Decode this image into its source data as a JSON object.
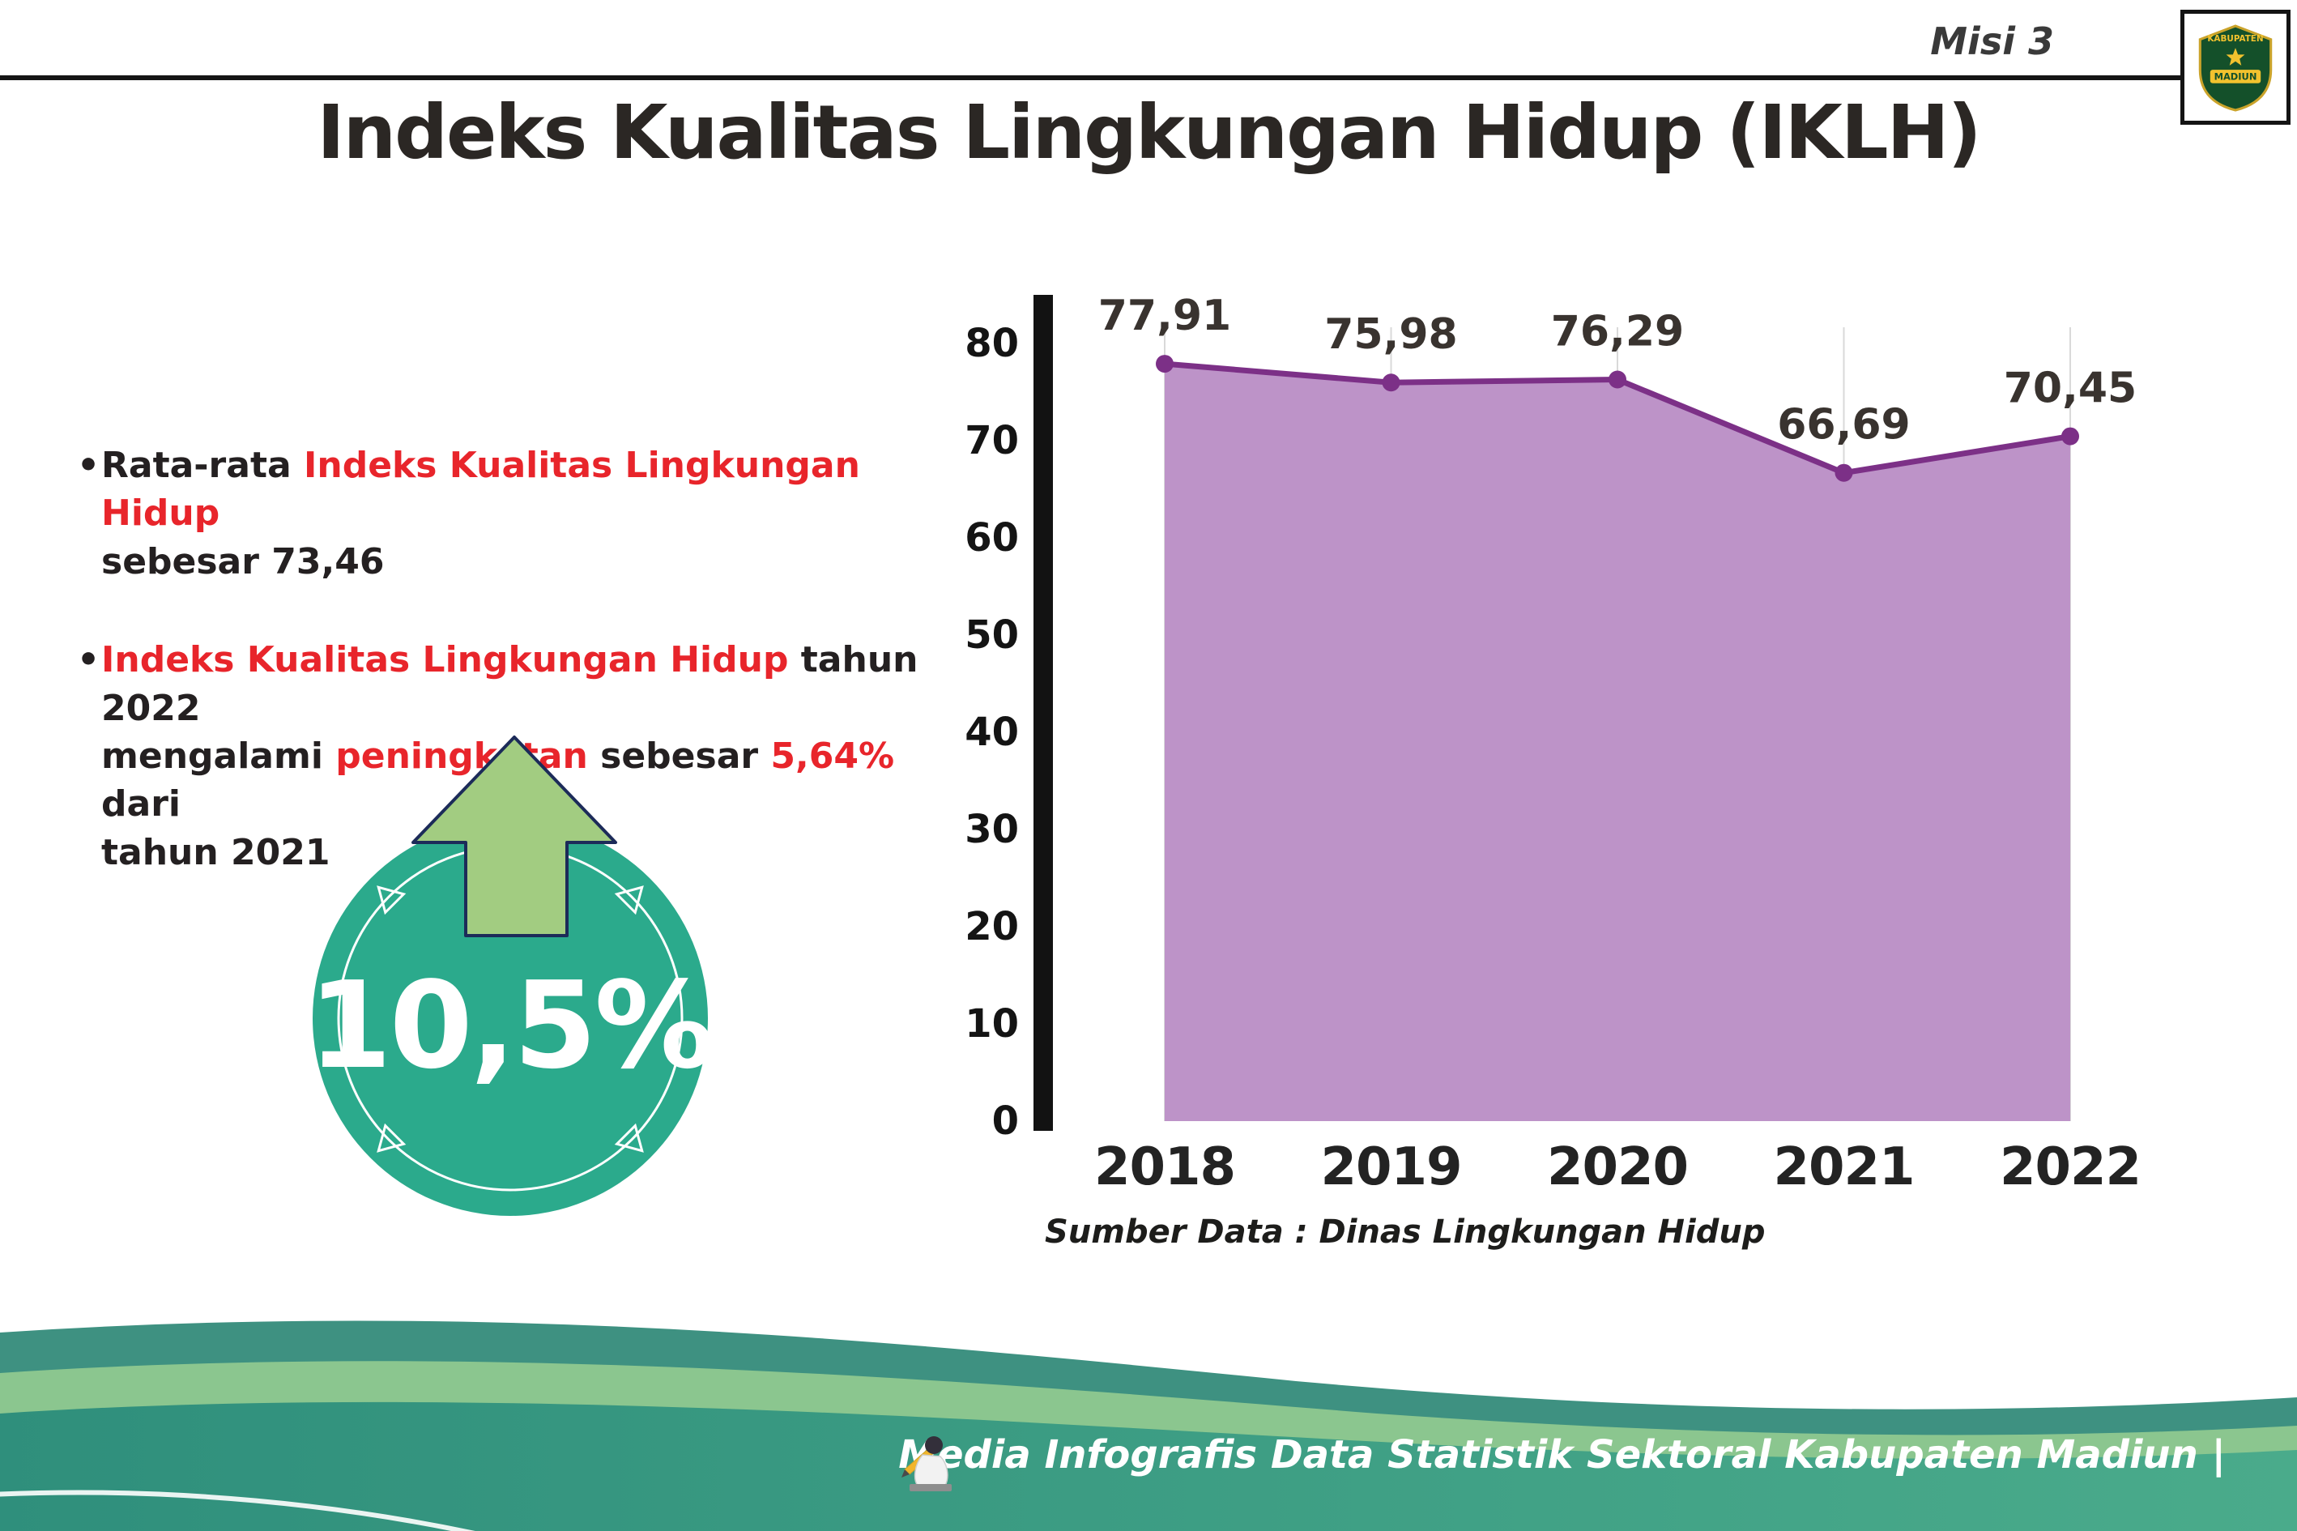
{
  "header": {
    "misi": "Misi 3",
    "logo": {
      "top_text": "KABUPATEN",
      "bottom_text": "MADIUN"
    }
  },
  "title": "Indeks Kualitas Lingkungan Hidup (IKLH)",
  "bullets": {
    "marker": "•",
    "b1": {
      "r1": "Rata-rata ",
      "r2": "Indeks Kualitas Lingkungan Hidup",
      "r3": "sebesar 73,46"
    },
    "b2": {
      "r1": "Indeks Kualitas Lingkungan Hidup",
      "r2": " tahun 2022",
      "r3": "mengalami ",
      "r4": "peningkatan",
      "r5": " sebesar ",
      "r6": "5,64%",
      "r7": " dari",
      "r8": "tahun 2021"
    }
  },
  "badge": {
    "value": "10,5%"
  },
  "chart_data": {
    "type": "area",
    "categories": [
      "2018",
      "2019",
      "2020",
      "2021",
      "2022"
    ],
    "values": [
      77.91,
      75.98,
      76.29,
      66.69,
      70.45
    ],
    "value_labels": [
      "77,91",
      "75,98",
      "76,29",
      "66,69",
      "70,45"
    ],
    "title": "",
    "xlabel": "",
    "ylabel": "",
    "ylim": [
      0,
      80
    ],
    "yticks": [
      0,
      10,
      20,
      30,
      40,
      50,
      60,
      70,
      80
    ],
    "grid": "vertical-light",
    "legend": "none",
    "area_color": "#bd93c8",
    "line_color": "#7c3087",
    "axis_color": "#121212"
  },
  "source": "Sumber Data : Dinas Lingkungan Hidup",
  "footer": {
    "text": "Media Infografis Data Statistik Sektoral Kabupaten Madiun |"
  },
  "colors": {
    "accent_red": "#e8252b",
    "badge_teal": "#2baa8c",
    "arrow_green": "#a2cc81",
    "arrow_outline": "#1c2b59",
    "footer_teal": "#3e9181",
    "footer_light_green": "#8bc68f",
    "footer_main_green": "#3da18a"
  }
}
